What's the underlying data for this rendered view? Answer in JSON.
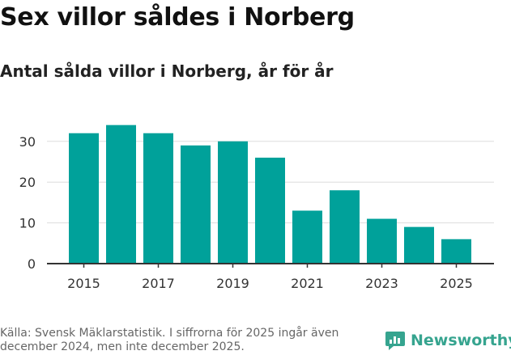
{
  "title": "Sex villor såldes i Norberg",
  "subtitle": "Antal sålda villor i Norberg, år för år",
  "footer": {
    "source_note": "Källa: Svensk Mäklarstatistik. I siffrorna för 2025 ingår även december 2024, men inte december 2025.",
    "brand_name": "Newsworthy"
  },
  "colors": {
    "bar": "#00a19a",
    "grid": "#dddddd",
    "axis": "#333333",
    "brand": "#36a48f"
  },
  "chart_data": {
    "type": "bar",
    "title": "Sex villor såldes i Norberg",
    "subtitle": "Antal sålda villor i Norberg, år för år",
    "xlabel": "",
    "ylabel": "",
    "categories": [
      "2015",
      "2016",
      "2017",
      "2018",
      "2019",
      "2020",
      "2021",
      "2022",
      "2023",
      "2024",
      "2025"
    ],
    "values": [
      32,
      34,
      32,
      29,
      30,
      26,
      13,
      18,
      11,
      9,
      6
    ],
    "x_tick_labels": [
      "2015",
      "2017",
      "2019",
      "2021",
      "2023",
      "2025"
    ],
    "y_ticks": [
      0,
      10,
      20,
      30
    ],
    "ylim": [
      0,
      35
    ],
    "grid": true,
    "legend": "none"
  }
}
